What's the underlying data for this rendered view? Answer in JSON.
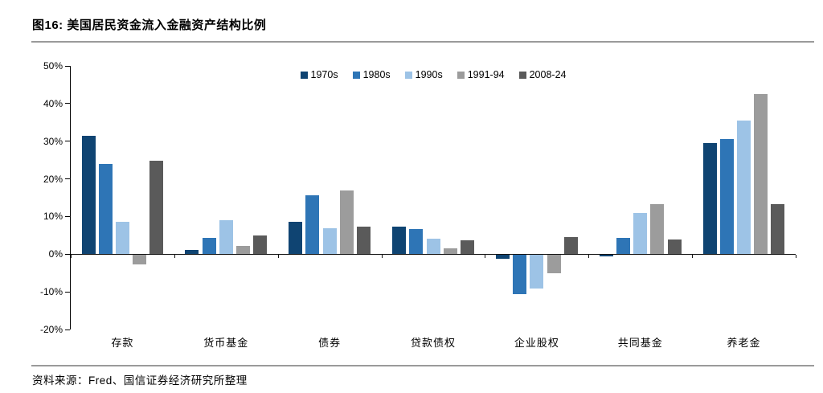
{
  "figure": {
    "title": "图16: 美国居民资金流入金融资产结构比例",
    "source": "资料来源：Fred、国信证券经济研究所整理"
  },
  "chart_data": {
    "type": "bar",
    "title": "美国居民资金流入金融资产结构比例",
    "categories": [
      "存款",
      "货币基金",
      "债券",
      "贷款债权",
      "企业股权",
      "共同基金",
      "养老金"
    ],
    "series": [
      {
        "name": "1970s",
        "color": "#0f4472",
        "values": [
          31.5,
          1.2,
          8.5,
          7.3,
          -1.0,
          -0.4,
          29.5
        ]
      },
      {
        "name": "1980s",
        "color": "#2e75b6",
        "values": [
          24.0,
          4.3,
          15.6,
          6.7,
          -10.4,
          4.4,
          30.5
        ]
      },
      {
        "name": "1990s",
        "color": "#9dc3e6",
        "values": [
          8.5,
          9.0,
          6.8,
          4.2,
          -9.0,
          10.9,
          35.5
        ]
      },
      {
        "name": "1991-94",
        "color": "#9c9c9c",
        "values": [
          -2.5,
          2.3,
          17.0,
          1.6,
          -4.8,
          13.2,
          42.5
        ]
      },
      {
        "name": "2008-24",
        "color": "#5a5a5a",
        "values": [
          24.8,
          4.9,
          7.3,
          3.6,
          4.6,
          3.9,
          13.2
        ]
      }
    ],
    "ylim": [
      -20,
      50
    ],
    "ytick_step": 10,
    "ytick_suffix": "%",
    "xlabel": "",
    "ylabel": "",
    "grid": false,
    "legend_position": "top-center",
    "axis_color": "#000000"
  }
}
